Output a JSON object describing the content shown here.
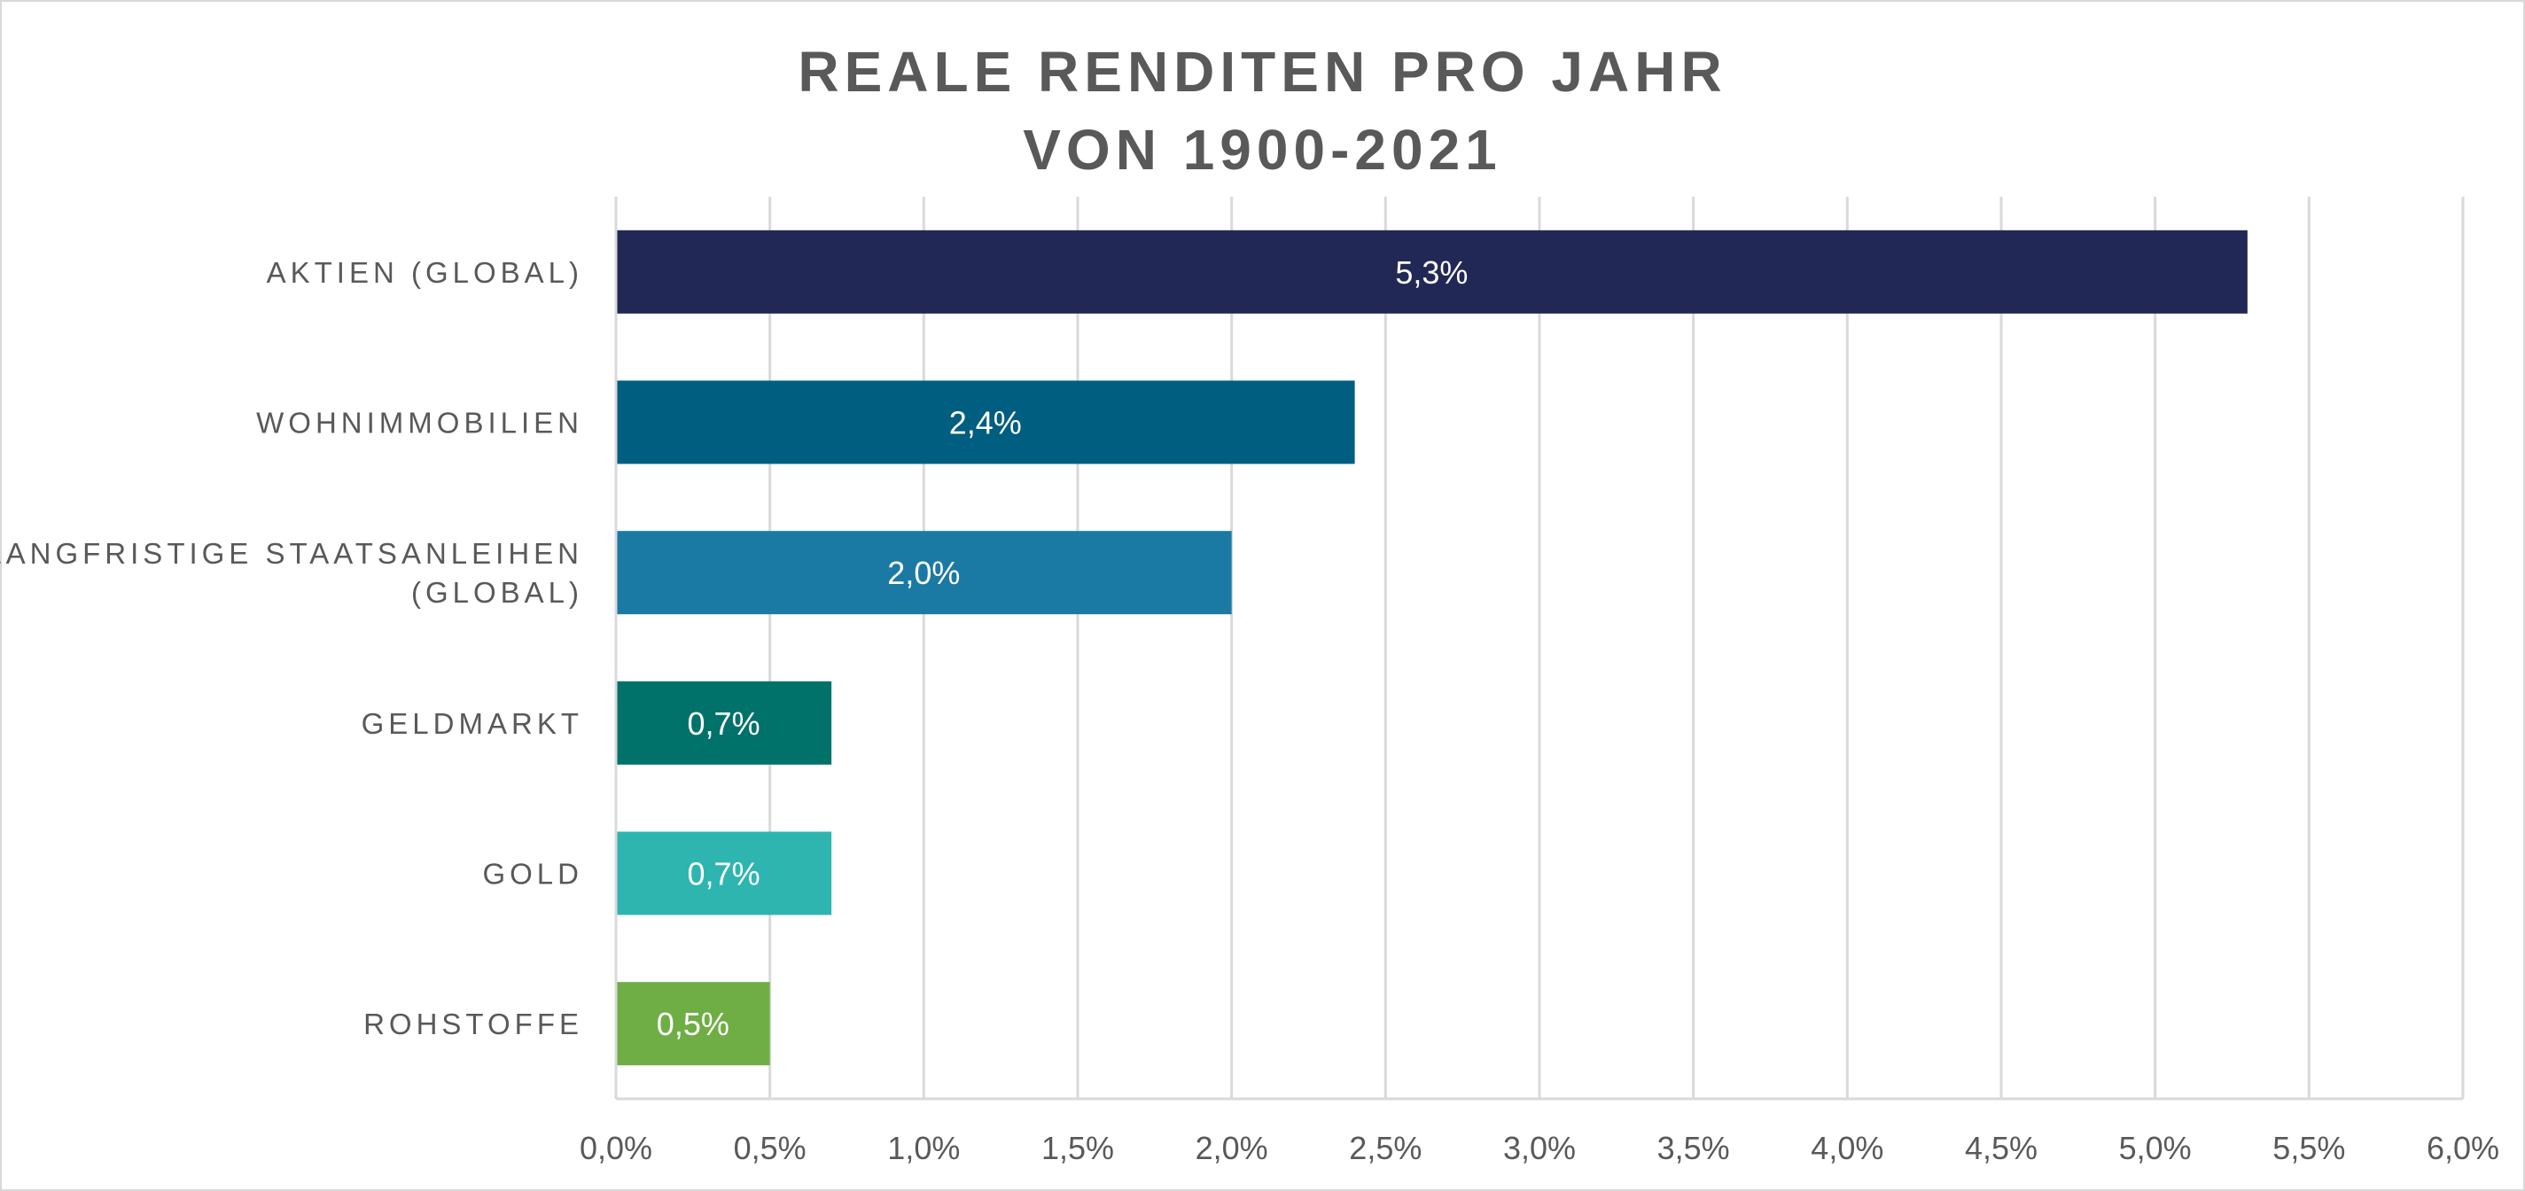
{
  "chart_data": {
    "type": "bar",
    "orientation": "horizontal",
    "title": [
      "REALE RENDITEN PRO JAHR",
      "VON 1900-2021"
    ],
    "xlabel": "",
    "ylabel": "",
    "categories": [
      [
        "AKTIEN (GLOBAL)"
      ],
      [
        "WOHNIMMOBILIEN"
      ],
      [
        "LANGFRISTIGE STAATSANLEIHEN",
        "(GLOBAL)"
      ],
      [
        "GELDMARKT"
      ],
      [
        "GOLD"
      ],
      [
        "ROHSTOFFE"
      ]
    ],
    "values": [
      5.3,
      2.4,
      2.0,
      0.7,
      0.7,
      0.5
    ],
    "data_labels": [
      "5,3%",
      "2,4%",
      "2,0%",
      "0,7%",
      "0,7%",
      "0,5%"
    ],
    "bar_colors": [
      "#222855",
      "#005e80",
      "#1b7aa3",
      "#00726a",
      "#2fb5b0",
      "#6fae45"
    ],
    "xlim": [
      0,
      6.0
    ],
    "x_ticks": [
      0,
      0.5,
      1.0,
      1.5,
      2.0,
      2.5,
      3.0,
      3.5,
      4.0,
      4.5,
      5.0,
      5.5,
      6.0
    ],
    "x_tick_labels": [
      "0,0%",
      "0,5%",
      "1,0%",
      "1,5%",
      "2,0%",
      "2,5%",
      "3,0%",
      "3,5%",
      "4,0%",
      "4,5%",
      "5,0%",
      "5,5%",
      "6,0%"
    ],
    "grid": "vertical",
    "legend": "none",
    "text_color": "#595959",
    "grid_color": "#d9d9d9",
    "label_color": "#ffffff"
  }
}
